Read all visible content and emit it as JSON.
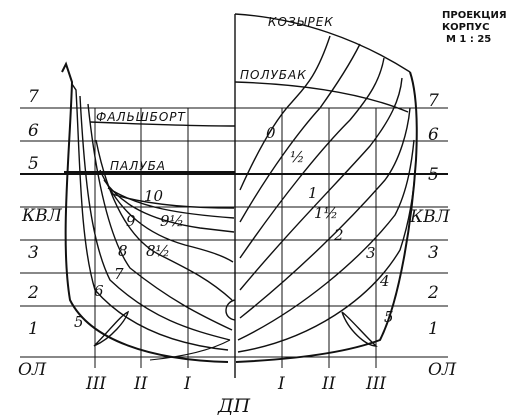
{
  "title": {
    "line1": "ПРОЕКЦИЯ",
    "line2": "КОРПУС",
    "line3": "М 1 : 25"
  },
  "deck_labels": {
    "kozyrek": "КОЗЫРЕК",
    "polubak": "ПОЛУБАК",
    "falshbort": "ФАЛЬШБОРТ",
    "paluba": "ПАЛУБА"
  },
  "waterlines": {
    "l7": "7",
    "l6": "6",
    "l5": "5",
    "kvl": "КВЛ",
    "l3": "3",
    "l2": "2",
    "l1": "1",
    "ol": "ОЛ",
    "r7": "7",
    "r6": "6",
    "r5": "5",
    "rkvl": "КВЛ",
    "r3": "3",
    "r2": "2",
    "r1": "1",
    "rol": "ОЛ"
  },
  "buttocks": {
    "l3": "III",
    "l2": "II",
    "l1": "I",
    "center": "ДП",
    "r1": "I",
    "r2": "II",
    "r3": "III"
  },
  "stations_aft": {
    "s10": "10",
    "s9": "9",
    "s9h": "9½",
    "s8": "8",
    "s8h": "8½",
    "s7": "7",
    "s6": "6",
    "s5": "5"
  },
  "stations_fwd": {
    "s0": "0",
    "s0h": "½",
    "s1": "1",
    "s1h": "1½",
    "s2": "2",
    "s3": "3",
    "s4": "4",
    "s5": "5"
  }
}
